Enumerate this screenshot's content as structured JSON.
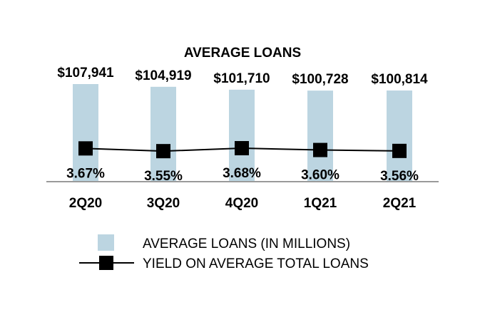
{
  "chart_data": {
    "type": "bar",
    "title": "AVERAGE LOANS",
    "categories": [
      "2Q20",
      "3Q20",
      "4Q20",
      "1Q21",
      "2Q21"
    ],
    "series": [
      {
        "name": "AVERAGE LOANS (IN MILLIONS)",
        "type": "bar",
        "values": [
          107941,
          104919,
          101710,
          100728,
          100814
        ],
        "labels": [
          "$107,941",
          "$104,919",
          "$101,710",
          "$100,728",
          "$100,814"
        ],
        "color": "#bcd5e1"
      },
      {
        "name": "YIELD ON AVERAGE TOTAL LOANS",
        "type": "line",
        "values": [
          3.67,
          3.55,
          3.68,
          3.6,
          3.56
        ],
        "labels": [
          "3.67%",
          "3.55%",
          "3.68%",
          "3.60%",
          "3.56%"
        ],
        "color": "#000000"
      }
    ],
    "grid": false,
    "legend": "bottom"
  }
}
